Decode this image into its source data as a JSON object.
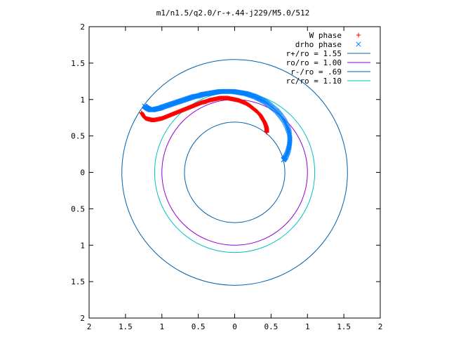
{
  "chart_data": {
    "type": "scatter",
    "title": "m1/n1.5/q2.0/r-+.44-j229/M5.0/512",
    "xlabel": "",
    "ylabel": "",
    "xlim": [
      -2,
      2
    ],
    "ylim": [
      -2,
      2
    ],
    "grid": false,
    "legend_position": "top-right",
    "x_ticks": [
      "2",
      "1.5",
      "1",
      "0.5",
      "0",
      "0.5",
      "1",
      "1.5",
      "2"
    ],
    "y_ticks": [
      "2",
      "1.5",
      "1",
      "0.5",
      "0",
      "0.5",
      "1",
      "1.5",
      "2"
    ],
    "series": [
      {
        "name": "W phase",
        "marker": "+",
        "color": "#ff0000",
        "x": [
          -1.28,
          -1.25,
          -1.22,
          -1.18,
          -1.14,
          -1.1,
          -1.05,
          -1.0,
          -0.95,
          -0.9,
          -0.85,
          -0.8,
          -0.75,
          -0.7,
          -0.65,
          -0.6,
          -0.55,
          -0.5,
          -0.45,
          -0.4,
          -0.35,
          -0.3,
          -0.25,
          -0.2,
          -0.15,
          -0.1,
          -0.05,
          0.0,
          0.05,
          0.1,
          0.15,
          0.2,
          0.25,
          0.3,
          0.35,
          0.38,
          0.41,
          0.43,
          0.44,
          0.44,
          0.44
        ],
        "y": [
          0.82,
          0.77,
          0.74,
          0.73,
          0.72,
          0.72,
          0.73,
          0.74,
          0.76,
          0.78,
          0.8,
          0.82,
          0.84,
          0.86,
          0.88,
          0.9,
          0.92,
          0.94,
          0.96,
          0.97,
          0.99,
          1.0,
          1.01,
          1.02,
          1.02,
          1.02,
          1.01,
          1.0,
          0.99,
          0.97,
          0.95,
          0.92,
          0.88,
          0.84,
          0.79,
          0.74,
          0.69,
          0.64,
          0.6,
          0.57,
          0.55
        ]
      },
      {
        "name": "drho phase",
        "marker": "x",
        "color": "#0080ff",
        "x": [
          -1.24,
          -1.2,
          -1.16,
          -1.12,
          -1.08,
          -1.03,
          -0.98,
          -0.92,
          -0.86,
          -0.8,
          -0.74,
          -0.68,
          -0.62,
          -0.56,
          -0.5,
          -0.44,
          -0.38,
          -0.32,
          -0.26,
          -0.2,
          -0.14,
          -0.08,
          -0.02,
          0.04,
          0.1,
          0.16,
          0.22,
          0.28,
          0.34,
          0.4,
          0.46,
          0.52,
          0.58,
          0.63,
          0.68,
          0.72,
          0.75,
          0.76,
          0.75,
          0.73,
          0.7,
          0.67
        ],
        "y": [
          0.91,
          0.88,
          0.86,
          0.86,
          0.87,
          0.88,
          0.9,
          0.92,
          0.94,
          0.96,
          0.98,
          1.0,
          1.02,
          1.04,
          1.05,
          1.07,
          1.08,
          1.09,
          1.1,
          1.11,
          1.11,
          1.11,
          1.11,
          1.1,
          1.09,
          1.08,
          1.06,
          1.04,
          1.01,
          0.98,
          0.94,
          0.89,
          0.84,
          0.78,
          0.71,
          0.63,
          0.55,
          0.45,
          0.36,
          0.28,
          0.21,
          0.17
        ]
      }
    ],
    "circles": [
      {
        "name": "r+/ro = 1.55",
        "radius": 1.55,
        "color": "#0060ad"
      },
      {
        "name": "ro/ro = 1.00",
        "radius": 1.0,
        "color": "#9400d3"
      },
      {
        "name": "r-/ro = .69",
        "radius": 0.69,
        "color": "#0060ad"
      },
      {
        "name": "rc/ro = 1.10",
        "radius": 1.1,
        "color": "#00c0c0"
      }
    ]
  }
}
